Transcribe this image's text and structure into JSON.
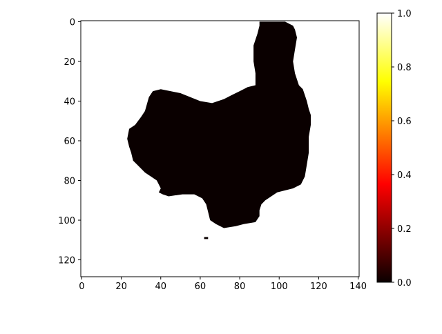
{
  "chart_data": {
    "type": "heatmap",
    "title": "",
    "xlabel": "",
    "ylabel": "",
    "image_shape": [
      129,
      141
    ],
    "value_range": [
      0,
      1
    ],
    "colormap": "hot",
    "colors": {
      "mask": "#0a0000",
      "background": "#ffffff"
    },
    "x_ticks": [
      {
        "value": 0,
        "label": "0"
      },
      {
        "value": 20,
        "label": "20"
      },
      {
        "value": 40,
        "label": "40"
      },
      {
        "value": 60,
        "label": "60"
      },
      {
        "value": 80,
        "label": "80"
      },
      {
        "value": 100,
        "label": "100"
      },
      {
        "value": 120,
        "label": "120"
      },
      {
        "value": 140,
        "label": "140"
      }
    ],
    "y_ticks": [
      {
        "value": 0,
        "label": "0"
      },
      {
        "value": 20,
        "label": "20"
      },
      {
        "value": 40,
        "label": "40"
      },
      {
        "value": 60,
        "label": "60"
      },
      {
        "value": 80,
        "label": "80"
      },
      {
        "value": 100,
        "label": "100"
      },
      {
        "value": 120,
        "label": "120"
      }
    ],
    "colorbar": {
      "ticks": [
        {
          "value": 0.0,
          "label": "0.0"
        },
        {
          "value": 0.2,
          "label": "0.2"
        },
        {
          "value": 0.4,
          "label": "0.4"
        },
        {
          "value": 0.6,
          "label": "0.6"
        },
        {
          "value": 0.8,
          "label": "0.8"
        },
        {
          "value": 1.0,
          "label": "1.0"
        }
      ]
    },
    "mask_region_value": 0,
    "background_value": 1,
    "mask_outline": [
      [
        90,
        0
      ],
      [
        103,
        0
      ],
      [
        107,
        2
      ],
      [
        108,
        4
      ],
      [
        109,
        8
      ],
      [
        108,
        14
      ],
      [
        107,
        20
      ],
      [
        108,
        26
      ],
      [
        110,
        32
      ],
      [
        112,
        34
      ],
      [
        113,
        37
      ],
      [
        114,
        40
      ],
      [
        115,
        44
      ],
      [
        116,
        47
      ],
      [
        116,
        52
      ],
      [
        115,
        58
      ],
      [
        115,
        66
      ],
      [
        114,
        72
      ],
      [
        113,
        78
      ],
      [
        111,
        82
      ],
      [
        107,
        84
      ],
      [
        103,
        85
      ],
      [
        99,
        86
      ],
      [
        96,
        88
      ],
      [
        93,
        90
      ],
      [
        91,
        92
      ],
      [
        90,
        95
      ],
      [
        90,
        98
      ],
      [
        88,
        101
      ],
      [
        82,
        102
      ],
      [
        78,
        103
      ],
      [
        72,
        104
      ],
      [
        68,
        102
      ],
      [
        65,
        100
      ],
      [
        64,
        96
      ],
      [
        63,
        92
      ],
      [
        61,
        89
      ],
      [
        57,
        87
      ],
      [
        51,
        87
      ],
      [
        44,
        88
      ],
      [
        41,
        87
      ],
      [
        39,
        86
      ],
      [
        40,
        84
      ],
      [
        38,
        80
      ],
      [
        35,
        78
      ],
      [
        32,
        76
      ],
      [
        28,
        72
      ],
      [
        26,
        70
      ],
      [
        25,
        66
      ],
      [
        24,
        63
      ],
      [
        23,
        59
      ],
      [
        24,
        54
      ],
      [
        27,
        52
      ],
      [
        30,
        48
      ],
      [
        32,
        45
      ],
      [
        34,
        38
      ],
      [
        36,
        35
      ],
      [
        40,
        34
      ],
      [
        45,
        35
      ],
      [
        50,
        36
      ],
      [
        55,
        38
      ],
      [
        60,
        40
      ],
      [
        66,
        41
      ],
      [
        72,
        39
      ],
      [
        76,
        37
      ],
      [
        80,
        35
      ],
      [
        84,
        33
      ],
      [
        88,
        32
      ],
      [
        88,
        26
      ],
      [
        87,
        20
      ],
      [
        87,
        12
      ],
      [
        89,
        6
      ],
      [
        90,
        2
      ]
    ],
    "speck_points": [
      [
        63,
        109
      ]
    ]
  }
}
